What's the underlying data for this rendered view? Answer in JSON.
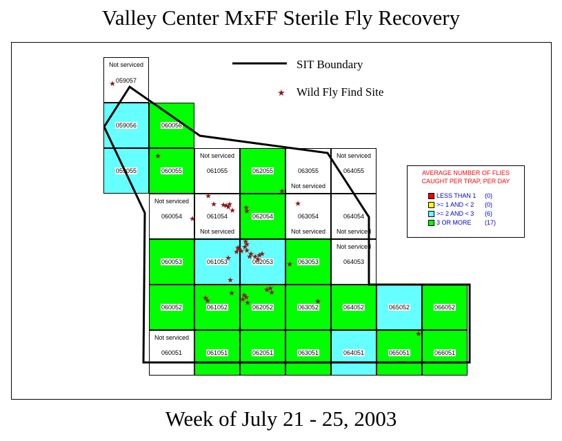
{
  "title": "Valley Center MxFF Sterile Fly Recovery",
  "subtitle": "Week of July 21 - 25, 2003",
  "key": {
    "boundary_label": "SIT Boundary",
    "find_label": "Wild Fly Find Site"
  },
  "legend": {
    "title_line1": "AVERAGE NUMBER OF FLIES",
    "title_line2": "CAUGHT PER TRAP, PER DAY",
    "items": [
      {
        "label": "LESS THAN 1",
        "count": "(0)",
        "color": "#ff0000",
        "text_color": "#0000cc"
      },
      {
        "label": ">= 1 AND < 2",
        "count": "(0)",
        "color": "#ffff00",
        "text_color": "#0000cc"
      },
      {
        "label": ">= 2 AND < 3",
        "count": "(6)",
        "color": "#66ffff",
        "text_color": "#0000cc"
      },
      {
        "label": "3 OR MORE",
        "count": "(17)",
        "color": "#00ff00",
        "text_color": "#0000cc"
      }
    ]
  },
  "colors": {
    "green": "#00ff00",
    "cyan": "#66ffff",
    "white": "#ffffff"
  },
  "grid": {
    "cells": [
      {
        "col": 0,
        "row": 0,
        "id": "059057",
        "fill": "white",
        "not_serviced": "Not serviced",
        "ns_pos": "top",
        "id_pos": "upper"
      },
      {
        "col": 0,
        "row": 1,
        "id": "059056",
        "fill": "cyan"
      },
      {
        "col": 1,
        "row": 1,
        "id": "060056",
        "fill": "green"
      },
      {
        "col": 0,
        "row": 2,
        "id": "059055",
        "fill": "cyan"
      },
      {
        "col": 1,
        "row": 2,
        "id": "060055",
        "fill": "green"
      },
      {
        "col": 2,
        "row": 2,
        "id": "061055",
        "fill": "white",
        "not_serviced": "Not serviced",
        "ns_pos": "top"
      },
      {
        "col": 3,
        "row": 2,
        "id": "062055",
        "fill": "green"
      },
      {
        "col": 4,
        "row": 2,
        "id": "063055",
        "fill": "white",
        "not_serviced": "Not serviced",
        "ns_pos": "bottom"
      },
      {
        "col": 5,
        "row": 2,
        "id": "064055",
        "fill": "white",
        "not_serviced": "Not serviced",
        "ns_pos": "top"
      },
      {
        "col": 1,
        "row": 3,
        "id": "060054",
        "fill": "white",
        "not_serviced": "Not serviced",
        "ns_pos": "top"
      },
      {
        "col": 2,
        "row": 3,
        "id": "061054",
        "fill": "white",
        "not_serviced": "Not serviced",
        "ns_pos": "bottom"
      },
      {
        "col": 3,
        "row": 3,
        "id": "062054",
        "fill": "green"
      },
      {
        "col": 4,
        "row": 3,
        "id": "063054",
        "fill": "white",
        "not_serviced": "Not serviced",
        "ns_pos": "bottom"
      },
      {
        "col": 5,
        "row": 3,
        "id": "064054",
        "fill": "white",
        "not_serviced": "Not serviced",
        "ns_pos": "bottom"
      },
      {
        "col": 1,
        "row": 4,
        "id": "060053",
        "fill": "green"
      },
      {
        "col": 2,
        "row": 4,
        "id": "061053",
        "fill": "cyan"
      },
      {
        "col": 3,
        "row": 4,
        "id": "062053",
        "fill": "cyan"
      },
      {
        "col": 4,
        "row": 4,
        "id": "063053",
        "fill": "green"
      },
      {
        "col": 5,
        "row": 4,
        "id": "064053",
        "fill": "white",
        "not_serviced": "Not serviced",
        "ns_pos": "top"
      },
      {
        "col": 1,
        "row": 5,
        "id": "060052",
        "fill": "green"
      },
      {
        "col": 2,
        "row": 5,
        "id": "061052",
        "fill": "green"
      },
      {
        "col": 3,
        "row": 5,
        "id": "062052",
        "fill": "green"
      },
      {
        "col": 4,
        "row": 5,
        "id": "063052",
        "fill": "green"
      },
      {
        "col": 5,
        "row": 5,
        "id": "064052",
        "fill": "green"
      },
      {
        "col": 6,
        "row": 5,
        "id": "065052",
        "fill": "cyan"
      },
      {
        "col": 7,
        "row": 5,
        "id": "066052",
        "fill": "green"
      },
      {
        "col": 1,
        "row": 6,
        "id": "060051",
        "fill": "white",
        "not_serviced": "Not serviced",
        "ns_pos": "top"
      },
      {
        "col": 2,
        "row": 6,
        "id": "061051",
        "fill": "green"
      },
      {
        "col": 3,
        "row": 6,
        "id": "062051",
        "fill": "green"
      },
      {
        "col": 4,
        "row": 6,
        "id": "063051",
        "fill": "green"
      },
      {
        "col": 5,
        "row": 6,
        "id": "064051",
        "fill": "cyan"
      },
      {
        "col": 6,
        "row": 6,
        "id": "065051",
        "fill": "green"
      },
      {
        "col": 7,
        "row": 6,
        "id": "066051",
        "fill": "green"
      }
    ]
  },
  "find_sites_count": 45
}
